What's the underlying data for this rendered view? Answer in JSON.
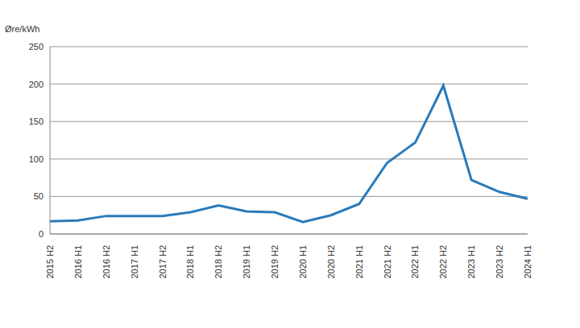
{
  "chart_data": {
    "type": "line",
    "y_label": "Øre/kWh",
    "categories": [
      "2015 H2",
      "2016 H1",
      "2016 H2",
      "2017 H1",
      "2017 H2",
      "2018 H1",
      "2018 H2",
      "2019 H1",
      "2019 H2",
      "2020 H1",
      "2020 H2",
      "2021 H1",
      "2021 H2",
      "2022 H1",
      "2022 H2",
      "2023 H1",
      "2023 H2",
      "2024 H1"
    ],
    "values": [
      17,
      18,
      24,
      24,
      24,
      29,
      38,
      30,
      29,
      16,
      25,
      40,
      95,
      122,
      198,
      72,
      56,
      47
    ],
    "color": "#2a7ab9",
    "ylim": [
      0,
      250
    ],
    "yticks": [
      0,
      50,
      100,
      150,
      200,
      250
    ],
    "grid": true
  }
}
